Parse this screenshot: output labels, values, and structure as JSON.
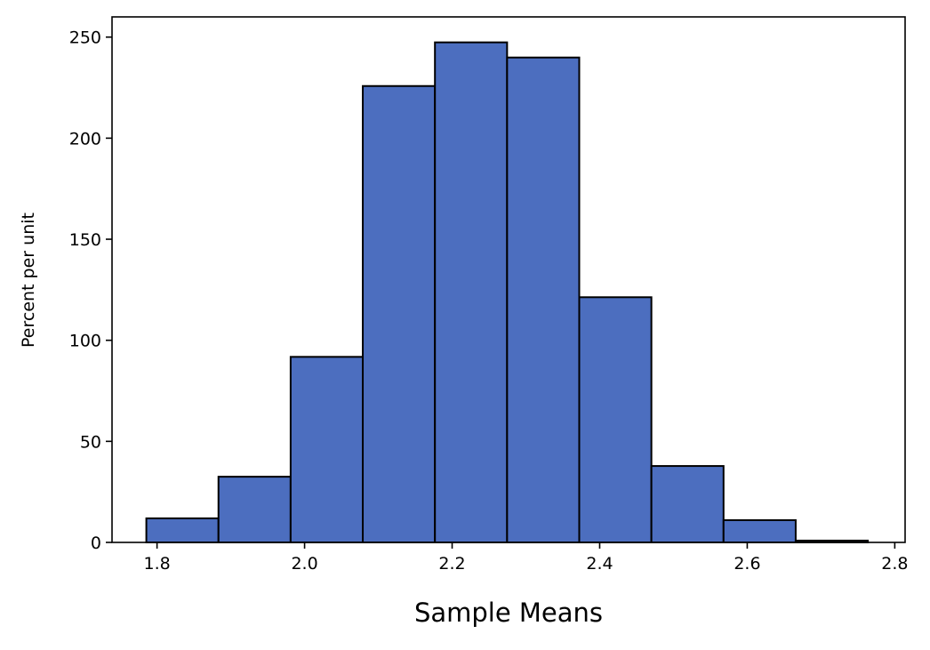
{
  "chart_data": {
    "type": "bar",
    "title": "",
    "xlabel": "Sample Means",
    "ylabel": "Percent per unit",
    "bin_edges": [
      1.7855,
      1.8833,
      1.9811,
      2.0789,
      2.1767,
      2.2745,
      2.3723,
      2.4701,
      2.5679,
      2.6657,
      2.7635
    ],
    "values": [
      11.9,
      32.5,
      91.8,
      225.8,
      247.4,
      239.9,
      121.3,
      37.8,
      11.0,
      0.9
    ],
    "xlim": [
      1.739,
      2.814
    ],
    "ylim": [
      0,
      260
    ],
    "xticks": [
      "1.8",
      "2.0",
      "2.2",
      "2.4",
      "2.6",
      "2.8"
    ],
    "yticks": [
      "0",
      "50",
      "100",
      "150",
      "200",
      "250"
    ],
    "bar_color": "#4c6ebf",
    "edge_color": "#000000",
    "grid": false
  }
}
